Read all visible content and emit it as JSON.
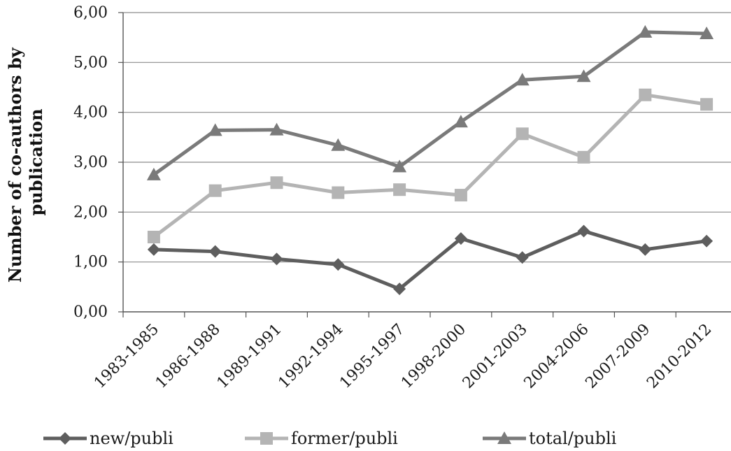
{
  "chart_data": {
    "type": "line",
    "categories": [
      "1983-1985",
      "1986-1988",
      "1989-1991",
      "1992-1994",
      "1995-1997",
      "1998-2000",
      "2001-2003",
      "2004-2006",
      "2007-2009",
      "2010-2012"
    ],
    "ylim": [
      0,
      6
    ],
    "yticks": [
      "0,00",
      "1,00",
      "2,00",
      "3,00",
      "4,00",
      "5,00",
      "6,00"
    ],
    "ylabel_lines": [
      "Number of co-authors by",
      "publication"
    ],
    "xlabel": "",
    "grid": "horizontal",
    "legend_position": "bottom",
    "series": [
      {
        "name": "new/publi",
        "marker": "diamond",
        "color": "#5e5e5e",
        "values": [
          1.25,
          1.21,
          1.06,
          0.95,
          0.46,
          1.47,
          1.09,
          1.62,
          1.25,
          1.42
        ]
      },
      {
        "name": "former/publi",
        "marker": "square",
        "color": "#b4b4b4",
        "values": [
          1.5,
          2.43,
          2.59,
          2.39,
          2.45,
          2.34,
          3.57,
          3.1,
          4.35,
          4.16
        ]
      },
      {
        "name": "total/publi",
        "marker": "triangle",
        "color": "#7a7a7a",
        "values": [
          2.75,
          3.64,
          3.65,
          3.34,
          2.91,
          3.81,
          4.65,
          4.72,
          5.61,
          5.58
        ]
      }
    ]
  }
}
